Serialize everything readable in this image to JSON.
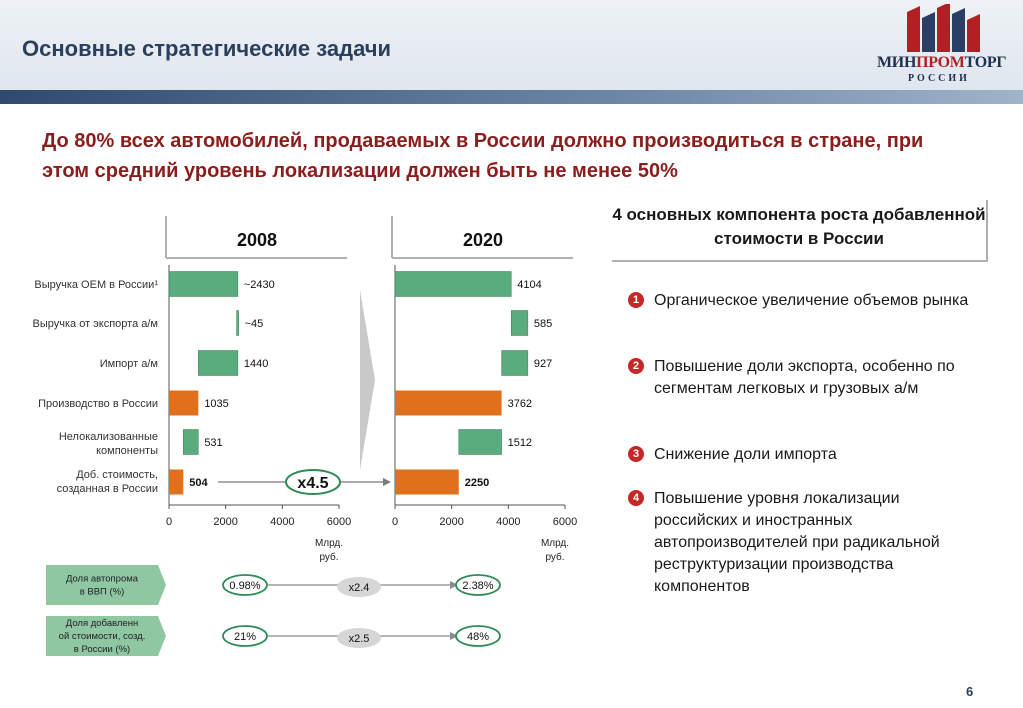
{
  "header": {
    "title": "Основные стратегические задачи",
    "logo_text_a": "МИН",
    "logo_text_b": "ПРОМ",
    "logo_text_c": "ТОРГ",
    "logo_sub": "РОССИИ"
  },
  "headline": "До 80% всех автомобилей, продаваемых в России должно производиться в стране, при этом средний уровень локализации должен быть не менее 50%",
  "chart_data": {
    "type": "bar",
    "orientation": "horizontal-waterfall",
    "categories": [
      "Выручка OEM в России¹",
      "Выручка от экспорта а/м",
      "Импорт а/м",
      "Производство в России",
      "Нелокализованные компоненты",
      "Доб. стоимость, созданная в России"
    ],
    "unit_label": "Млрд. руб.",
    "xlim": [
      0,
      6000
    ],
    "xticks": [
      0,
      2000,
      4000,
      6000
    ],
    "colors": {
      "green": "#5aab7d",
      "orange": "#e0701c"
    },
    "panels": [
      {
        "title": "2008",
        "bars": [
          {
            "start": 0,
            "end": 2430,
            "label": "~2430",
            "color": "green"
          },
          {
            "start": 2385,
            "end": 2430,
            "label": "~45",
            "color": "green"
          },
          {
            "start": 1035,
            "end": 2430,
            "label": "1440",
            "color": "green"
          },
          {
            "start": 0,
            "end": 1035,
            "label": "1035",
            "color": "orange"
          },
          {
            "start": 504,
            "end": 1035,
            "label": "531",
            "color": "green"
          },
          {
            "start": 0,
            "end": 504,
            "label": "504",
            "color": "orange"
          }
        ]
      },
      {
        "title": "2020",
        "bars": [
          {
            "start": 0,
            "end": 4104,
            "label": "4104",
            "color": "green"
          },
          {
            "start": 4104,
            "end": 4689,
            "label": "585",
            "color": "green"
          },
          {
            "start": 3762,
            "end": 4689,
            "label": "927",
            "color": "green"
          },
          {
            "start": 0,
            "end": 3762,
            "label": "3762",
            "color": "orange"
          },
          {
            "start": 2250,
            "end": 3762,
            "label": "1512",
            "color": "green"
          },
          {
            "start": 0,
            "end": 2250,
            "label": "2250",
            "color": "orange"
          }
        ]
      }
    ],
    "growth_label": "x4.5",
    "indicators": [
      {
        "label": "Доля автопрома в ВВП (%)",
        "from": "0.98%",
        "mult": "x2.4",
        "to": "2.38%"
      },
      {
        "label": "Доля добавленной стоимости, созд. в России (%)",
        "from": "21%",
        "mult": "x2.5",
        "to": "48%"
      }
    ]
  },
  "right_panel": {
    "title": "4 основных компонента роста добавленной стоимости в России",
    "items": [
      {
        "num": "1",
        "text": "Органическое увеличение объемов рынка"
      },
      {
        "num": "2",
        "text": "Повышение доли экспорта, особенно по сегментам легковых и грузовых а/м"
      },
      {
        "num": "3",
        "text": "Снижение доли импорта"
      },
      {
        "num": "4",
        "text": "Повышение уровня локализации российских и иностранных автопроизводителей при радикальной реструктуризации производства компонентов"
      }
    ]
  },
  "page_number": "6"
}
